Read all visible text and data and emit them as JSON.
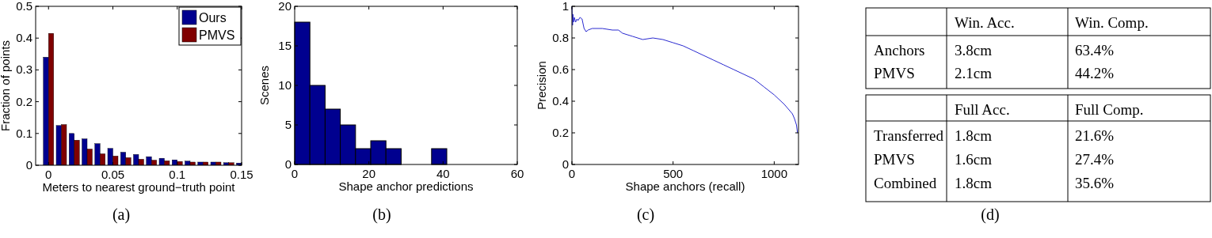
{
  "chart_data": [
    {
      "type": "bar",
      "xlabel": "Meters to nearest ground−truth point",
      "ylabel": "Fraction of points",
      "annotations": [
        "(a)"
      ],
      "x": [
        0,
        0.01,
        0.02,
        0.03,
        0.04,
        0.05,
        0.06,
        0.07,
        0.08,
        0.09,
        0.1,
        0.11,
        0.12,
        0.13,
        0.14,
        0.15
      ],
      "series": [
        {
          "name": "Ours",
          "color": "#00008f",
          "values": [
            0.34,
            0.125,
            0.1,
            0.083,
            0.068,
            0.053,
            0.041,
            0.034,
            0.027,
            0.022,
            0.017,
            0.013,
            0.01,
            0.01,
            0.008,
            0.007
          ]
        },
        {
          "name": "PMVS",
          "color": "#800000",
          "values": [
            0.415,
            0.128,
            0.079,
            0.051,
            0.036,
            0.029,
            0.024,
            0.019,
            0.016,
            0.014,
            0.012,
            0.01,
            0.01,
            0.01,
            0.008,
            null
          ]
        }
      ],
      "xlim": [
        -0.01,
        0.15
      ],
      "xticks": [
        0,
        0.05,
        0.1,
        0.15
      ],
      "ylim": [
        0,
        0.5
      ],
      "yticks": [
        0,
        0.1,
        0.2,
        0.3,
        0.4,
        0.5
      ],
      "legend": "top right"
    },
    {
      "type": "histogram",
      "xlabel": "Shape anchor predictions",
      "ylabel": "Scenes",
      "annotations": [
        "(b)"
      ],
      "bins": [
        0,
        4.1,
        8.2,
        12.3,
        16.4,
        20.5,
        24.6,
        28.7,
        32.8,
        36.9,
        41
      ],
      "values": [
        18,
        10,
        7,
        5,
        2,
        3,
        2,
        0,
        0,
        2
      ],
      "color": "#00008f",
      "xlim": [
        0,
        60
      ],
      "xticks": [
        0,
        20,
        40,
        60
      ],
      "ylim": [
        0,
        20
      ],
      "yticks": [
        0,
        5,
        10,
        15,
        20
      ]
    },
    {
      "type": "line",
      "xlabel": "Shape anchors (recall)",
      "ylabel": "Precision",
      "annotations": [
        "(c)"
      ],
      "color": "#2a2ad0",
      "x": [
        0,
        3,
        5,
        8,
        12,
        18,
        25,
        30,
        40,
        50,
        55,
        60,
        70,
        80,
        100,
        150,
        200,
        230,
        250,
        300,
        350,
        400,
        450,
        500,
        550,
        600,
        650,
        700,
        750,
        800,
        850,
        900,
        950,
        1000,
        1050,
        1090,
        1100,
        1110,
        1115
      ],
      "values": [
        1.0,
        0.88,
        0.95,
        0.9,
        0.93,
        0.9,
        0.92,
        0.91,
        0.93,
        0.92,
        0.89,
        0.86,
        0.84,
        0.85,
        0.86,
        0.86,
        0.85,
        0.85,
        0.83,
        0.81,
        0.79,
        0.8,
        0.79,
        0.77,
        0.75,
        0.72,
        0.69,
        0.66,
        0.63,
        0.6,
        0.57,
        0.54,
        0.49,
        0.44,
        0.38,
        0.32,
        0.29,
        0.25,
        0.2
      ],
      "xlim": [
        0,
        1120
      ],
      "xticks": [
        0,
        500,
        1000
      ],
      "ylim": [
        0,
        1
      ],
      "yticks": [
        0,
        0.2,
        0.4,
        0.6,
        0.8,
        1
      ]
    },
    {
      "type": "other",
      "annotations": [
        "Win. Acc.",
        "Win. Comp.",
        "Anchors",
        "3.8cm",
        "63.4%",
        "PMVS",
        "2.1cm",
        "44.2%",
        "Full Acc.",
        "Full Comp.",
        "Transferred",
        "1.8cm",
        "21.6%",
        "PMVS",
        "1.6cm",
        "27.4%",
        "Combined",
        "1.8cm",
        "35.6%",
        "(d)"
      ]
    }
  ]
}
